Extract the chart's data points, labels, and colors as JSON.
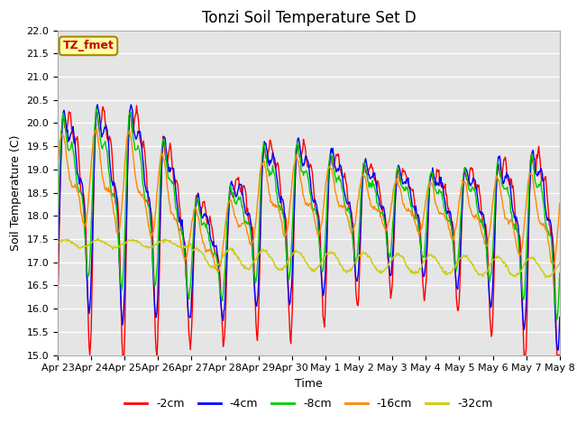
{
  "title": "Tonzi Soil Temperature Set D",
  "xlabel": "Time",
  "ylabel": "Soil Temperature (C)",
  "ylim": [
    15.0,
    22.0
  ],
  "yticks": [
    15.0,
    15.5,
    16.0,
    16.5,
    17.0,
    17.5,
    18.0,
    18.5,
    19.0,
    19.5,
    20.0,
    20.5,
    21.0,
    21.5,
    22.0
  ],
  "xtick_labels": [
    "Apr 23",
    "Apr 24",
    "Apr 25",
    "Apr 26",
    "Apr 27",
    "Apr 28",
    "Apr 29",
    "Apr 30",
    "May 1",
    "May 2",
    "May 3",
    "May 4",
    "May 5",
    "May 6",
    "May 7",
    "May 8"
  ],
  "legend_labels": [
    "-2cm",
    "-4cm",
    "-8cm",
    "-16cm",
    "-32cm"
  ],
  "legend_colors": [
    "#ff0000",
    "#0000ff",
    "#00cc00",
    "#ff8800",
    "#cccc00"
  ],
  "annotation_text": "TZ_fmet",
  "annotation_bg": "#ffffaa",
  "annotation_border": "#aa8800",
  "annotation_color": "#cc0000",
  "title_fontsize": 12,
  "label_fontsize": 9,
  "tick_fontsize": 8
}
